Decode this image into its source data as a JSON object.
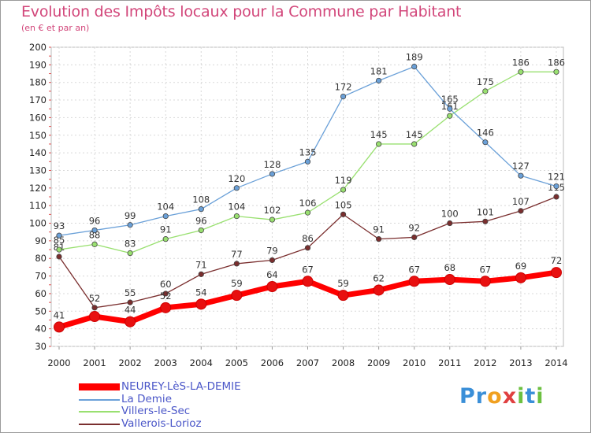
{
  "title": "Evolution des Impôts locaux pour la Commune par Habitant",
  "subtitle": "(en € et par an)",
  "logo": {
    "letters": [
      "P",
      "r",
      "o",
      "x",
      "i",
      "t",
      "i"
    ],
    "colors": [
      "#3a8fd8",
      "#3a8fd8",
      "#f0a020",
      "#e04040",
      "#6cc040",
      "#3a8fd8",
      "#6cc040"
    ]
  },
  "chart_data": {
    "type": "line",
    "title": "Evolution des Impôts locaux pour la Commune par Habitant",
    "subtitle": "(en € et par an)",
    "x": [
      "2000",
      "2001",
      "2002",
      "2003",
      "2004",
      "2005",
      "2006",
      "2007",
      "2008",
      "2009",
      "2010",
      "2011",
      "2012",
      "2013",
      "2014"
    ],
    "ylim": [
      30,
      200
    ],
    "yticks": [
      "30",
      "40",
      "50",
      "60",
      "70",
      "80",
      "90",
      "100",
      "110",
      "120",
      "130",
      "140",
      "150",
      "160",
      "170",
      "180",
      "190",
      "200"
    ],
    "grid": true,
    "legend_position": "bottom-left",
    "series": [
      {
        "name": "NEUREY-LèS-LA-DEMIE",
        "color": "#ff0000",
        "values": [
          41,
          47,
          44,
          52,
          54,
          59,
          64,
          67,
          59,
          62,
          67,
          68,
          67,
          69,
          72
        ],
        "labels": [
          "41",
          "",
          "44",
          "52",
          "54",
          "59",
          "64",
          "67",
          "59",
          "62",
          "67",
          "68",
          "67",
          "69",
          "72"
        ]
      },
      {
        "name": "La Demie",
        "color": "#6aa0d8",
        "values": [
          93,
          96,
          99,
          104,
          108,
          120,
          128,
          135,
          172,
          181,
          189,
          165,
          146,
          127,
          121
        ],
        "labels": [
          "93",
          "96",
          "99",
          "104",
          "108",
          "120",
          "128",
          "135",
          "172",
          "181",
          "189",
          "165",
          "146",
          "127",
          "121"
        ]
      },
      {
        "name": "Villers-le-Sec",
        "color": "#99e070",
        "values": [
          85,
          88,
          83,
          91,
          96,
          104,
          102,
          106,
          119,
          145,
          145,
          161,
          175,
          186,
          186
        ],
        "labels": [
          "85",
          "88",
          "83",
          "91",
          "96",
          "104",
          "102",
          "106",
          "119",
          "145",
          "145",
          "161",
          "175",
          "186",
          "186"
        ]
      },
      {
        "name": "Vallerois-Lorioz",
        "color": "#7a2e2e",
        "values": [
          81,
          52,
          55,
          60,
          71,
          77,
          79,
          86,
          105,
          91,
          92,
          100,
          101,
          107,
          115
        ],
        "labels": [
          "81",
          "52",
          "55",
          "60",
          "71",
          "77",
          "79",
          "86",
          "105",
          "91",
          "92",
          "100",
          "101",
          "107",
          "115"
        ]
      }
    ]
  }
}
